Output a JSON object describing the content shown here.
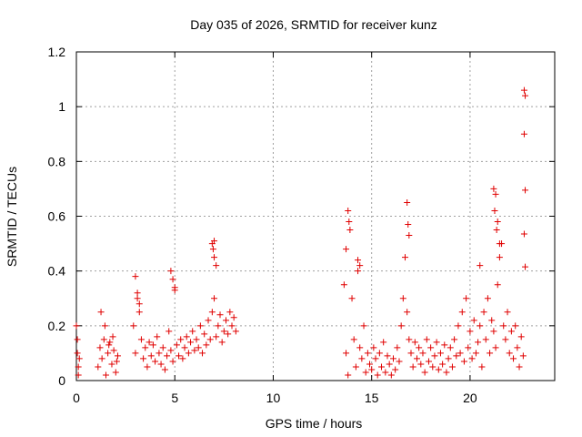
{
  "chart_data": {
    "type": "scatter",
    "title": "Day 035 of 2026, SRMTID for receiver kunz",
    "xlabel": "GPS time / hours",
    "ylabel": "SRMTID / TECUs",
    "xlim": [
      0,
      24.3
    ],
    "ylim": [
      0,
      1.2
    ],
    "xticks": [
      0,
      5,
      10,
      15,
      20
    ],
    "xtick_labels": [
      "0",
      "5",
      "10",
      "15",
      "20"
    ],
    "yticks": [
      0,
      0.2,
      0.4,
      0.6,
      0.8,
      1.0,
      1.2
    ],
    "ytick_labels": [
      "0",
      "0.2",
      "0.4",
      "0.6",
      "0.8",
      "1",
      "1.2"
    ],
    "grid": true,
    "marker": "+",
    "color": "#e00000",
    "series": [
      {
        "name": "SRMTID",
        "x": [
          0.0,
          0.05,
          0.1,
          0.15,
          0.05,
          0.1,
          1.1,
          1.2,
          1.3,
          1.4,
          1.5,
          1.6,
          1.7,
          1.8,
          1.9,
          2.0,
          2.1,
          1.25,
          1.45,
          1.65,
          1.85,
          2.05,
          2.9,
          3.0,
          3.1,
          3.2,
          3.3,
          3.4,
          3.5,
          3.6,
          3.7,
          3.8,
          3.9,
          4.0,
          4.1,
          4.2,
          4.3,
          4.4,
          4.5,
          4.6,
          4.7,
          4.8,
          4.9,
          5.0,
          5.1,
          5.2,
          5.3,
          5.4,
          5.5,
          5.6,
          5.7,
          5.8,
          5.9,
          6.0,
          6.1,
          6.2,
          6.3,
          6.4,
          6.5,
          6.6,
          6.7,
          6.8,
          6.9,
          7.0,
          7.1,
          7.2,
          7.3,
          7.4,
          7.5,
          7.6,
          7.7,
          7.8,
          7.9,
          8.0,
          8.1,
          3.0,
          3.1,
          3.2,
          4.8,
          4.9,
          5.0,
          6.9,
          7.0,
          7.1,
          7.0,
          6.95,
          13.6,
          13.7,
          13.8,
          13.9,
          14.0,
          14.1,
          14.2,
          14.3,
          14.4,
          14.5,
          14.6,
          14.7,
          14.8,
          14.9,
          15.0,
          15.1,
          15.2,
          15.3,
          15.4,
          15.5,
          15.6,
          15.7,
          15.8,
          15.9,
          16.0,
          16.1,
          16.2,
          16.3,
          16.4,
          16.5,
          16.6,
          16.7,
          16.8,
          16.9,
          17.0,
          17.1,
          17.2,
          17.3,
          17.4,
          17.5,
          17.6,
          17.7,
          17.8,
          17.9,
          18.0,
          18.1,
          18.2,
          18.3,
          18.4,
          18.5,
          18.6,
          18.7,
          18.8,
          18.9,
          19.0,
          19.1,
          19.2,
          19.3,
          19.4,
          19.5,
          19.6,
          19.7,
          19.8,
          19.9,
          20.0,
          20.1,
          20.2,
          20.3,
          20.4,
          20.5,
          20.6,
          20.7,
          20.8,
          20.9,
          21.0,
          21.1,
          21.2,
          21.3,
          21.4,
          21.5,
          21.6,
          21.7,
          21.8,
          21.9,
          22.0,
          22.1,
          22.2,
          22.3,
          22.4,
          22.5,
          22.6,
          22.7,
          13.8,
          13.85,
          13.7,
          14.3,
          14.4,
          16.8,
          16.85,
          16.9,
          21.2,
          21.3,
          21.25,
          21.4,
          21.35,
          21.5,
          20.5,
          22.75,
          22.8,
          22.75,
          22.8,
          22.75,
          22.8
        ],
        "y": [
          0.2,
          0.1,
          0.05,
          0.08,
          0.15,
          0.02,
          0.05,
          0.12,
          0.08,
          0.15,
          0.02,
          0.1,
          0.14,
          0.06,
          0.11,
          0.03,
          0.09,
          0.25,
          0.2,
          0.13,
          0.16,
          0.07,
          0.2,
          0.1,
          0.3,
          0.25,
          0.15,
          0.08,
          0.12,
          0.05,
          0.14,
          0.09,
          0.13,
          0.07,
          0.16,
          0.1,
          0.06,
          0.12,
          0.04,
          0.09,
          0.18,
          0.11,
          0.07,
          0.34,
          0.13,
          0.09,
          0.15,
          0.08,
          0.12,
          0.16,
          0.1,
          0.14,
          0.18,
          0.11,
          0.15,
          0.12,
          0.2,
          0.1,
          0.17,
          0.13,
          0.22,
          0.15,
          0.25,
          0.3,
          0.16,
          0.2,
          0.24,
          0.14,
          0.18,
          0.22,
          0.17,
          0.25,
          0.2,
          0.23,
          0.18,
          0.38,
          0.32,
          0.28,
          0.4,
          0.37,
          0.33,
          0.5,
          0.45,
          0.42,
          0.51,
          0.48,
          0.35,
          0.1,
          0.02,
          0.55,
          0.3,
          0.15,
          0.05,
          0.4,
          0.12,
          0.08,
          0.2,
          0.03,
          0.1,
          0.06,
          0.04,
          0.12,
          0.08,
          0.02,
          0.1,
          0.05,
          0.14,
          0.03,
          0.09,
          0.06,
          0.02,
          0.08,
          0.04,
          0.12,
          0.07,
          0.2,
          0.3,
          0.45,
          0.25,
          0.15,
          0.1,
          0.05,
          0.14,
          0.08,
          0.12,
          0.06,
          0.1,
          0.03,
          0.15,
          0.07,
          0.12,
          0.05,
          0.09,
          0.14,
          0.04,
          0.1,
          0.06,
          0.13,
          0.03,
          0.08,
          0.12,
          0.05,
          0.15,
          0.09,
          0.2,
          0.1,
          0.25,
          0.07,
          0.3,
          0.12,
          0.18,
          0.08,
          0.22,
          0.1,
          0.14,
          0.2,
          0.05,
          0.25,
          0.15,
          0.3,
          0.1,
          0.22,
          0.18,
          0.12,
          0.35,
          0.45,
          0.5,
          0.2,
          0.15,
          0.25,
          0.1,
          0.18,
          0.08,
          0.2,
          0.12,
          0.05,
          0.16,
          0.09,
          0.62,
          0.58,
          0.48,
          0.44,
          0.42,
          0.65,
          0.57,
          0.53,
          0.7,
          0.68,
          0.62,
          0.58,
          0.55,
          0.5,
          0.42,
          1.06,
          1.04,
          0.9,
          0.695,
          0.535,
          0.415
        ]
      }
    ]
  }
}
